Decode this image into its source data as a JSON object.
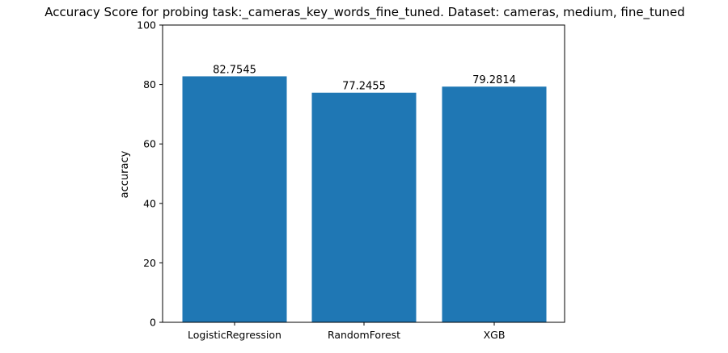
{
  "chart_data": {
    "type": "bar",
    "title": "Accuracy Score for probing task:_cameras_key_words_fine_tuned. Dataset: cameras, medium, fine_tuned",
    "xlabel": "",
    "ylabel": "accuracy",
    "categories": [
      "LogisticRegression",
      "RandomForest",
      "XGB"
    ],
    "values": [
      82.7545,
      77.2455,
      79.2814
    ],
    "value_labels": [
      "82.7545",
      "77.2455",
      "79.2814"
    ],
    "ylim": [
      0,
      100
    ],
    "yticks": [
      0,
      20,
      40,
      60,
      80,
      100
    ],
    "ytick_labels": [
      "0",
      "20",
      "40",
      "60",
      "80",
      "100"
    ],
    "bar_color": "#1f77b4",
    "grid": false,
    "legend": "none"
  }
}
